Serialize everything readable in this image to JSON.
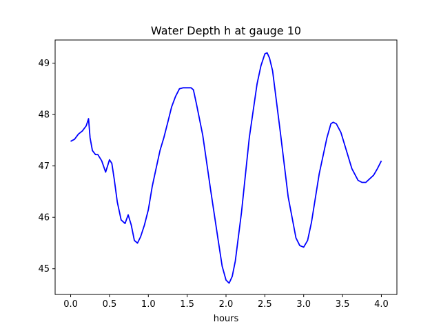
{
  "chart_data": {
    "type": "line",
    "title": "Water Depth h at gauge 10",
    "xlabel": "hours",
    "ylabel": "",
    "xlim": [
      -0.2,
      4.2
    ],
    "ylim": [
      44.5,
      49.45
    ],
    "grid": false,
    "xticks": [
      0.0,
      0.5,
      1.0,
      1.5,
      2.0,
      2.5,
      3.0,
      3.5,
      4.0
    ],
    "xtick_labels": [
      "0.0",
      "0.5",
      "1.0",
      "1.5",
      "2.0",
      "2.5",
      "3.0",
      "3.5",
      "4.0"
    ],
    "yticks": [
      45,
      46,
      47,
      48,
      49
    ],
    "ytick_labels": [
      "45",
      "46",
      "47",
      "48",
      "49"
    ],
    "series": [
      {
        "name": "",
        "color": "#0000ff",
        "x": [
          0.0,
          0.05,
          0.1,
          0.15,
          0.2,
          0.23,
          0.25,
          0.28,
          0.32,
          0.35,
          0.4,
          0.45,
          0.5,
          0.53,
          0.56,
          0.6,
          0.65,
          0.7,
          0.74,
          0.78,
          0.82,
          0.86,
          0.9,
          0.95,
          1.0,
          1.05,
          1.1,
          1.15,
          1.2,
          1.25,
          1.3,
          1.35,
          1.4,
          1.45,
          1.5,
          1.55,
          1.58,
          1.62,
          1.7,
          1.8,
          1.9,
          1.95,
          2.0,
          2.04,
          2.08,
          2.12,
          2.2,
          2.3,
          2.4,
          2.45,
          2.5,
          2.53,
          2.56,
          2.6,
          2.7,
          2.8,
          2.9,
          2.95,
          3.0,
          3.05,
          3.1,
          3.2,
          3.3,
          3.35,
          3.38,
          3.42,
          3.48,
          3.55,
          3.62,
          3.7,
          3.75,
          3.8,
          3.85,
          3.9,
          3.95,
          4.0
        ],
        "y": [
          47.48,
          47.52,
          47.62,
          47.68,
          47.78,
          47.92,
          47.55,
          47.3,
          47.22,
          47.22,
          47.1,
          46.88,
          47.12,
          47.05,
          46.75,
          46.3,
          45.95,
          45.88,
          46.05,
          45.85,
          45.55,
          45.5,
          45.62,
          45.85,
          46.15,
          46.6,
          46.95,
          47.3,
          47.55,
          47.85,
          48.15,
          48.35,
          48.5,
          48.52,
          48.52,
          48.52,
          48.48,
          48.2,
          47.6,
          46.55,
          45.55,
          45.05,
          44.78,
          44.72,
          44.85,
          45.15,
          46.1,
          47.55,
          48.6,
          48.95,
          49.18,
          49.2,
          49.1,
          48.85,
          47.65,
          46.4,
          45.6,
          45.45,
          45.42,
          45.55,
          45.9,
          46.85,
          47.55,
          47.82,
          47.85,
          47.82,
          47.65,
          47.3,
          46.95,
          46.72,
          46.68,
          46.68,
          46.75,
          46.82,
          46.95,
          47.1
        ]
      }
    ]
  }
}
